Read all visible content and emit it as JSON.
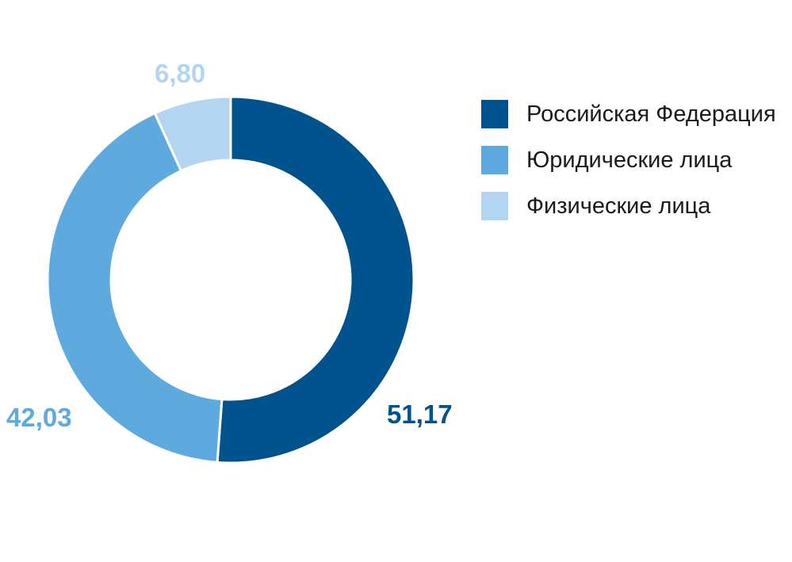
{
  "chart_data": {
    "type": "pie",
    "variant": "donut",
    "categories": [
      "Российская Федерация",
      "Юридические лица",
      "Физические лица"
    ],
    "values": [
      51.17,
      42.03,
      6.8
    ],
    "value_labels": [
      "51,17",
      "42,03",
      "6,80"
    ],
    "colors": [
      "#00538c",
      "#5eaade",
      "#b3d5f1"
    ],
    "title": "",
    "legend_placement": "right"
  }
}
